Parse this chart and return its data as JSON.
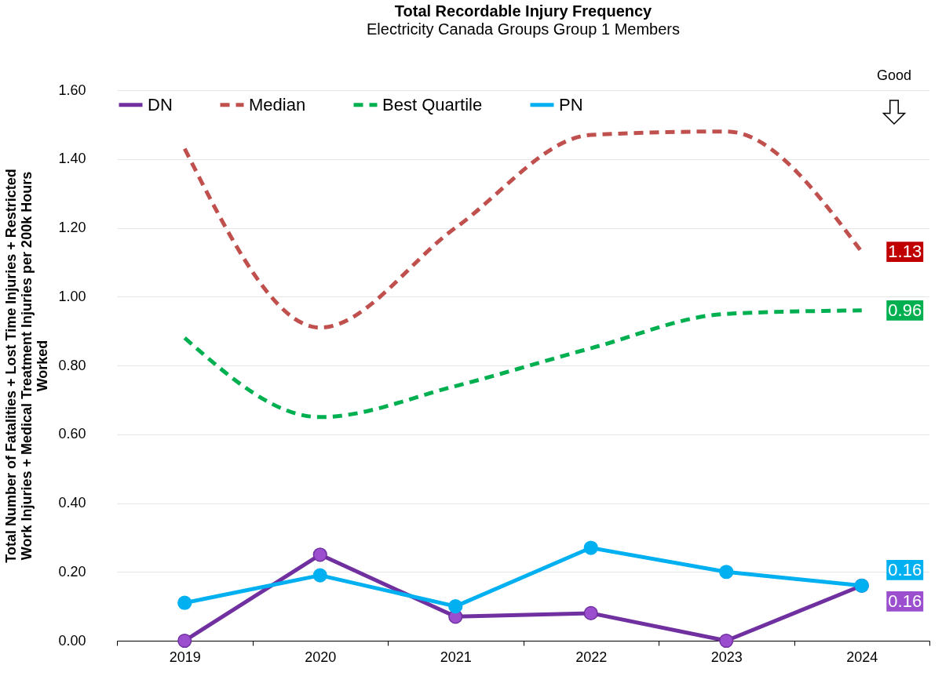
{
  "chart_data": {
    "type": "line",
    "title": "Total Recordable Injury Frequency",
    "subtitle": "Electricity Canada Groups Group 1 Members",
    "ylabel": "Total Number of Fatalities + Lost Time Injuries + Restricted Work Injuries + Medical Treatment Injuries per 200k Hours Worked",
    "categories": [
      "2019",
      "2020",
      "2021",
      "2022",
      "2023",
      "2024"
    ],
    "series": [
      {
        "name": "DN",
        "color": "#7030a0",
        "marker": "circle",
        "line_style": "solid",
        "values": [
          0,
          0.25,
          0.07,
          0.08,
          0,
          0.16
        ],
        "value_labels": [
          null,
          null,
          null,
          null,
          null,
          "0.16"
        ]
      },
      {
        "name": "Median",
        "color": "#c0504d",
        "marker": "none",
        "line_style": "dashed",
        "values": [
          1.43,
          0.91,
          1.2,
          1.47,
          1.48,
          1.13
        ],
        "value_labels": [
          null,
          null,
          null,
          null,
          null,
          "1.13"
        ]
      },
      {
        "name": "Best Quartile",
        "color": "#00b050",
        "marker": "none",
        "line_style": "dashed",
        "values": [
          0.88,
          0.65,
          0.74,
          0.85,
          0.95,
          0.96
        ],
        "value_labels": [
          null,
          null,
          null,
          null,
          null,
          "0.96"
        ]
      },
      {
        "name": "PN",
        "color": "#00b0f0",
        "marker": "circle",
        "line_style": "solid",
        "values": [
          0.11,
          0.19,
          0.1,
          0.27,
          0.2,
          0.16
        ],
        "value_labels": [
          null,
          null,
          null,
          null,
          null,
          "0.16"
        ]
      }
    ],
    "ylim": [
      0,
      1.6
    ],
    "yticks": [
      {
        "value": 0,
        "label": "0.00"
      },
      {
        "value": 0.2,
        "label": "0.20"
      },
      {
        "value": 0.4,
        "label": "0.40"
      },
      {
        "value": 0.6,
        "label": "0.60"
      },
      {
        "value": 0.8,
        "label": "0.80"
      },
      {
        "value": 1.0,
        "label": "1.00"
      },
      {
        "value": 1.2,
        "label": "1.20"
      },
      {
        "value": 1.4,
        "label": "1.40"
      },
      {
        "value": 1.6,
        "label": "1.60"
      }
    ],
    "grid": "y",
    "legend": "top",
    "annotations": [
      "Good"
    ]
  }
}
